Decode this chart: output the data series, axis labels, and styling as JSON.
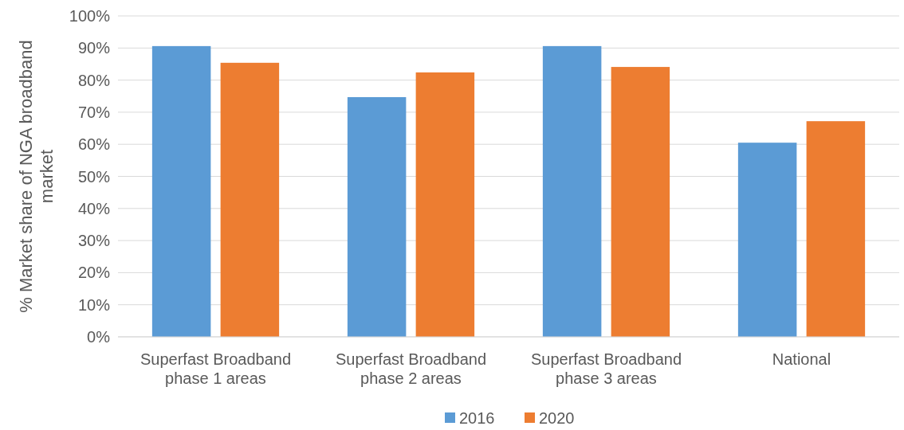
{
  "chart_data": {
    "type": "bar",
    "ylabel": "% Market share of NGA broadband market",
    "categories": [
      "Superfast Broadband phase 1 areas",
      "Superfast Broadband phase 2 areas",
      "Superfast Broadband phase 3 areas",
      "National"
    ],
    "series": [
      {
        "name": "2016",
        "color": "#5b9bd5",
        "values": [
          90.6,
          74.7,
          90.6,
          60.5
        ]
      },
      {
        "name": "2020",
        "color": "#ed7d31",
        "values": [
          85.4,
          82.4,
          84.1,
          67.2
        ]
      }
    ],
    "ylim": [
      0,
      100
    ],
    "yticks": [
      {
        "value": 0,
        "label": "0%"
      },
      {
        "value": 10,
        "label": "10%"
      },
      {
        "value": 20,
        "label": "20%"
      },
      {
        "value": 30,
        "label": "30%"
      },
      {
        "value": 40,
        "label": "40%"
      },
      {
        "value": 50,
        "label": "50%"
      },
      {
        "value": 60,
        "label": "60%"
      },
      {
        "value": 70,
        "label": "70%"
      },
      {
        "value": 80,
        "label": "80%"
      },
      {
        "value": 90,
        "label": "90%"
      },
      {
        "value": 100,
        "label": "100%"
      }
    ],
    "grid": "y",
    "legend": "bottom"
  }
}
